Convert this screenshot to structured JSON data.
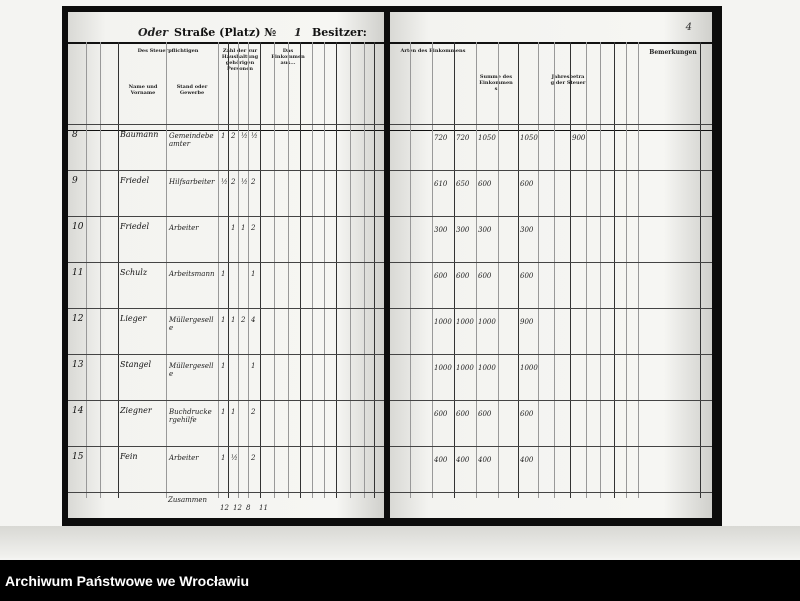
{
  "header": {
    "street_handwritten": "Oder",
    "street_label": "Straße (Platz) №",
    "street_number": "1",
    "owner_label": "Besitzer:",
    "page_number": "4"
  },
  "left_headers": {
    "taxpayer": "Des Steuerpflichtigen",
    "name": "Name und Vorname",
    "status": "Stand oder Gewerbe",
    "household": "Zahl der zur Haushaltung gehörigen Personen",
    "income_sources": "Das Einkommen aus..."
  },
  "right_headers": {
    "income_types": "Arten des Einkommens",
    "sum": "Summe des Einkommens",
    "annual_amount": "Jahresbetrag der Steuer",
    "remarks": "Bemerkungen"
  },
  "rows": [
    {
      "no": "8",
      "name": "Baumann",
      "status": "Gemeindebeamter",
      "counts": [
        "1",
        "2",
        "½",
        "½"
      ],
      "amounts": [
        "720",
        "720",
        "1050",
        "1050",
        "900"
      ]
    },
    {
      "no": "9",
      "name": "Friedel",
      "status": "Hilfsarbeiter",
      "counts": [
        "½",
        "2",
        "½",
        "2"
      ],
      "amounts": [
        "610",
        "650",
        "600",
        "600"
      ]
    },
    {
      "no": "10",
      "name": "Friedel",
      "status": "Arbeiter",
      "counts": [
        "",
        "1",
        "1",
        "2"
      ],
      "amounts": [
        "300",
        "300",
        "300",
        "300"
      ]
    },
    {
      "no": "11",
      "name": "Schulz",
      "status": "Arbeitsmann",
      "counts": [
        "1",
        "",
        "",
        "1"
      ],
      "amounts": [
        "600",
        "600",
        "600",
        "600"
      ]
    },
    {
      "no": "12",
      "name": "Lieger",
      "status": "Müllergeselle",
      "counts": [
        "1",
        "1",
        "2",
        "4"
      ],
      "amounts": [
        "1000",
        "1000",
        "1000",
        "900"
      ]
    },
    {
      "no": "13",
      "name": "Stangel",
      "status": "Müllergeselle",
      "counts": [
        "1",
        "",
        "",
        "1"
      ],
      "amounts": [
        "1000",
        "1000",
        "1000",
        "1000"
      ]
    },
    {
      "no": "14",
      "name": "Ziegner",
      "status": "Buchdruckergehilfe",
      "counts": [
        "1",
        "1",
        "",
        "2"
      ],
      "amounts": [
        "600",
        "600",
        "600",
        "600"
      ]
    },
    {
      "no": "15",
      "name": "Fein",
      "status": "Arbeiter",
      "counts": [
        "1",
        "½",
        "",
        "2"
      ],
      "amounts": [
        "400",
        "400",
        "400",
        "400"
      ]
    }
  ],
  "totals": {
    "label": "Zusammen",
    "values": [
      "12",
      "12",
      "8",
      "11"
    ]
  },
  "footer": {
    "archive": "Archiwum Państwowe we Wrocławiu"
  }
}
